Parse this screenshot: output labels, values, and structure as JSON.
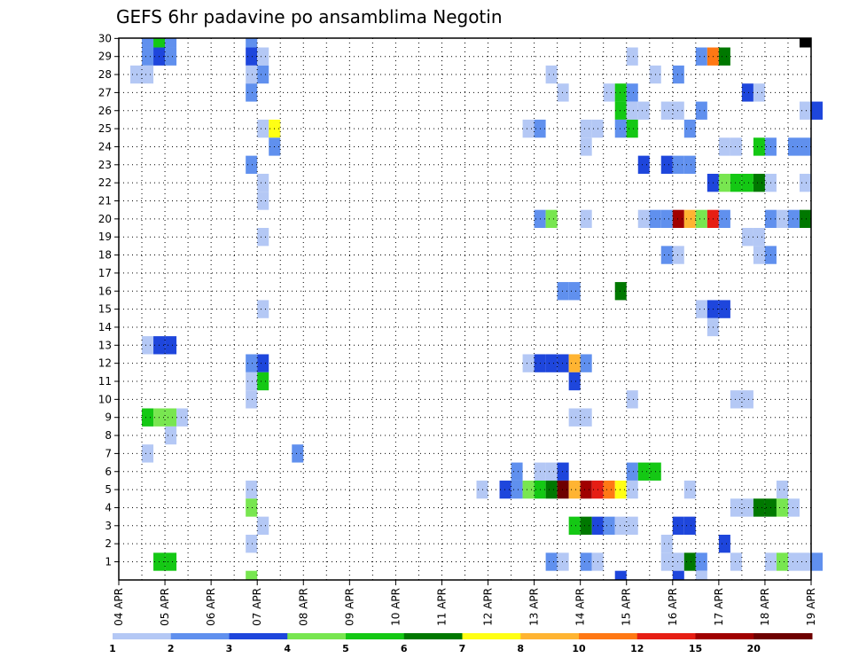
{
  "chart_data": {
    "type": "heatmap",
    "title": "GEFS 6hr padavine po ansamblima Negotin",
    "y_ticks": [
      "1",
      "2",
      "3",
      "4",
      "5",
      "6",
      "7",
      "8",
      "9",
      "10",
      "11",
      "12",
      "13",
      "14",
      "15",
      "16",
      "17",
      "18",
      "19",
      "20",
      "21",
      "22",
      "23",
      "24",
      "25",
      "26",
      "27",
      "28",
      "29",
      "30"
    ],
    "x_ticks": [
      "04 APR",
      "05 APR",
      "06 APR",
      "07 APR",
      "08 APR",
      "09 APR",
      "10 APR",
      "11 APR",
      "12 APR",
      "13 APR",
      "14 APR",
      "15 APR",
      "16 APR",
      "17 APR",
      "18 APR",
      "19 APR"
    ],
    "x_step_hours": 6,
    "x_range_steps": [
      0,
      60
    ],
    "y_range": [
      1,
      30
    ],
    "grid": true,
    "colorbar": {
      "labels": [
        "1",
        "2",
        "3",
        "4",
        "5",
        "6",
        "7",
        "8",
        "10",
        "12",
        "15",
        "20"
      ],
      "colors": [
        "#b4c8f5",
        "#6090ee",
        "#1e46dc",
        "#78e650",
        "#14c814",
        "#007800",
        "#ffff14",
        "#ffb432",
        "#ff7814",
        "#e61e14",
        "#a00000",
        "#6e0000"
      ]
    },
    "cells": [
      [
        2,
        30,
        2
      ],
      [
        3,
        30,
        5
      ],
      [
        4,
        30,
        2
      ],
      [
        11,
        30,
        2
      ],
      [
        59,
        30,
        13
      ],
      [
        2,
        29,
        2
      ],
      [
        3,
        29,
        3
      ],
      [
        4,
        29,
        2
      ],
      [
        11,
        29,
        3
      ],
      [
        12,
        29,
        1
      ],
      [
        44,
        29,
        1
      ],
      [
        50,
        29,
        2
      ],
      [
        51,
        29,
        9
      ],
      [
        52,
        29,
        6
      ],
      [
        1,
        28,
        1
      ],
      [
        2,
        28,
        1
      ],
      [
        11,
        28,
        1
      ],
      [
        12,
        28,
        2
      ],
      [
        37,
        28,
        1
      ],
      [
        46,
        28,
        1
      ],
      [
        48,
        28,
        2
      ],
      [
        11,
        27,
        2
      ],
      [
        38,
        27,
        1
      ],
      [
        42,
        27,
        1
      ],
      [
        43,
        27,
        5
      ],
      [
        44,
        27,
        2
      ],
      [
        54,
        27,
        3
      ],
      [
        55,
        27,
        1
      ],
      [
        43,
        26,
        5
      ],
      [
        44,
        26,
        1
      ],
      [
        45,
        26,
        1
      ],
      [
        47,
        26,
        1
      ],
      [
        48,
        26,
        1
      ],
      [
        50,
        26,
        2
      ],
      [
        59,
        26,
        1
      ],
      [
        60,
        26,
        3
      ],
      [
        12,
        25,
        1
      ],
      [
        13,
        25,
        7
      ],
      [
        35,
        25,
        1
      ],
      [
        36,
        25,
        2
      ],
      [
        40,
        25,
        1
      ],
      [
        41,
        25,
        1
      ],
      [
        43,
        25,
        2
      ],
      [
        44,
        25,
        5
      ],
      [
        49,
        25,
        2
      ],
      [
        13,
        24,
        2
      ],
      [
        40,
        24,
        1
      ],
      [
        52,
        24,
        1
      ],
      [
        53,
        24,
        1
      ],
      [
        55,
        24,
        5
      ],
      [
        56,
        24,
        2
      ],
      [
        58,
        24,
        2
      ],
      [
        59,
        24,
        2
      ],
      [
        11,
        23,
        2
      ],
      [
        45,
        23,
        3
      ],
      [
        47,
        23,
        3
      ],
      [
        48,
        23,
        2
      ],
      [
        49,
        23,
        2
      ],
      [
        12,
        22,
        1
      ],
      [
        51,
        22,
        3
      ],
      [
        52,
        22,
        4
      ],
      [
        53,
        22,
        5
      ],
      [
        54,
        22,
        5
      ],
      [
        55,
        22,
        6
      ],
      [
        56,
        22,
        1
      ],
      [
        59,
        22,
        1
      ],
      [
        12,
        21,
        1
      ],
      [
        36,
        20,
        2
      ],
      [
        37,
        20,
        4
      ],
      [
        40,
        20,
        1
      ],
      [
        45,
        20,
        1
      ],
      [
        46,
        20,
        2
      ],
      [
        47,
        20,
        2
      ],
      [
        48,
        20,
        11
      ],
      [
        49,
        20,
        8
      ],
      [
        50,
        20,
        4
      ],
      [
        51,
        20,
        10
      ],
      [
        52,
        20,
        2
      ],
      [
        56,
        20,
        2
      ],
      [
        57,
        20,
        1
      ],
      [
        58,
        20,
        2
      ],
      [
        59,
        20,
        6
      ],
      [
        12,
        19,
        1
      ],
      [
        54,
        19,
        1
      ],
      [
        55,
        19,
        1
      ],
      [
        47,
        18,
        2
      ],
      [
        48,
        18,
        1
      ],
      [
        55,
        18,
        1
      ],
      [
        56,
        18,
        2
      ],
      [
        38,
        16,
        2
      ],
      [
        39,
        16,
        2
      ],
      [
        43,
        16,
        6
      ],
      [
        12,
        15,
        1
      ],
      [
        50,
        15,
        1
      ],
      [
        51,
        15,
        3
      ],
      [
        52,
        15,
        3
      ],
      [
        51,
        14,
        1
      ],
      [
        2,
        13,
        1
      ],
      [
        3,
        13,
        3
      ],
      [
        4,
        13,
        3
      ],
      [
        11,
        12,
        2
      ],
      [
        12,
        12,
        3
      ],
      [
        35,
        12,
        1
      ],
      [
        36,
        12,
        3
      ],
      [
        37,
        12,
        3
      ],
      [
        38,
        12,
        3
      ],
      [
        39,
        12,
        8
      ],
      [
        40,
        12,
        2
      ],
      [
        11,
        11,
        1
      ],
      [
        12,
        11,
        5
      ],
      [
        39,
        11,
        3
      ],
      [
        11,
        10,
        1
      ],
      [
        44,
        10,
        1
      ],
      [
        53,
        10,
        1
      ],
      [
        54,
        10,
        1
      ],
      [
        2,
        9,
        5
      ],
      [
        3,
        9,
        4
      ],
      [
        4,
        9,
        4
      ],
      [
        5,
        9,
        1
      ],
      [
        39,
        9,
        1
      ],
      [
        40,
        9,
        1
      ],
      [
        4,
        8,
        1
      ],
      [
        2,
        7,
        1
      ],
      [
        15,
        7,
        2
      ],
      [
        34,
        6,
        2
      ],
      [
        36,
        6,
        1
      ],
      [
        37,
        6,
        1
      ],
      [
        38,
        6,
        3
      ],
      [
        44,
        6,
        2
      ],
      [
        45,
        6,
        5
      ],
      [
        46,
        6,
        5
      ],
      [
        11,
        5,
        1
      ],
      [
        31,
        5,
        1
      ],
      [
        33,
        5,
        3
      ],
      [
        34,
        5,
        2
      ],
      [
        35,
        5,
        4
      ],
      [
        36,
        5,
        5
      ],
      [
        37,
        5,
        6
      ],
      [
        38,
        5,
        12
      ],
      [
        39,
        5,
        8
      ],
      [
        40,
        5,
        11
      ],
      [
        41,
        5,
        10
      ],
      [
        42,
        5,
        9
      ],
      [
        43,
        5,
        7
      ],
      [
        44,
        5,
        1
      ],
      [
        49,
        5,
        1
      ],
      [
        57,
        5,
        1
      ],
      [
        11,
        4,
        4
      ],
      [
        53,
        4,
        1
      ],
      [
        54,
        4,
        1
      ],
      [
        55,
        4,
        6
      ],
      [
        56,
        4,
        6
      ],
      [
        57,
        4,
        4
      ],
      [
        58,
        4,
        1
      ],
      [
        12,
        3,
        1
      ],
      [
        39,
        3,
        5
      ],
      [
        40,
        3,
        6
      ],
      [
        41,
        3,
        3
      ],
      [
        42,
        3,
        2
      ],
      [
        43,
        3,
        1
      ],
      [
        44,
        3,
        1
      ],
      [
        48,
        3,
        3
      ],
      [
        49,
        3,
        3
      ],
      [
        11,
        2,
        1
      ],
      [
        47,
        2,
        1
      ],
      [
        52,
        2,
        3
      ],
      [
        3,
        1,
        5
      ],
      [
        4,
        1,
        5
      ],
      [
        37,
        1,
        2
      ],
      [
        38,
        1,
        1
      ],
      [
        40,
        1,
        2
      ],
      [
        41,
        1,
        1
      ],
      [
        47,
        1,
        1
      ],
      [
        48,
        1,
        1
      ],
      [
        49,
        1,
        6
      ],
      [
        50,
        1,
        2
      ],
      [
        53,
        1,
        1
      ],
      [
        56,
        1,
        1
      ],
      [
        57,
        1,
        4
      ],
      [
        58,
        1,
        1
      ],
      [
        59,
        1,
        1
      ],
      [
        60,
        1,
        2
      ],
      [
        11,
        0,
        4
      ],
      [
        43,
        0,
        3
      ],
      [
        48,
        0,
        3
      ],
      [
        50,
        0,
        1
      ]
    ]
  }
}
